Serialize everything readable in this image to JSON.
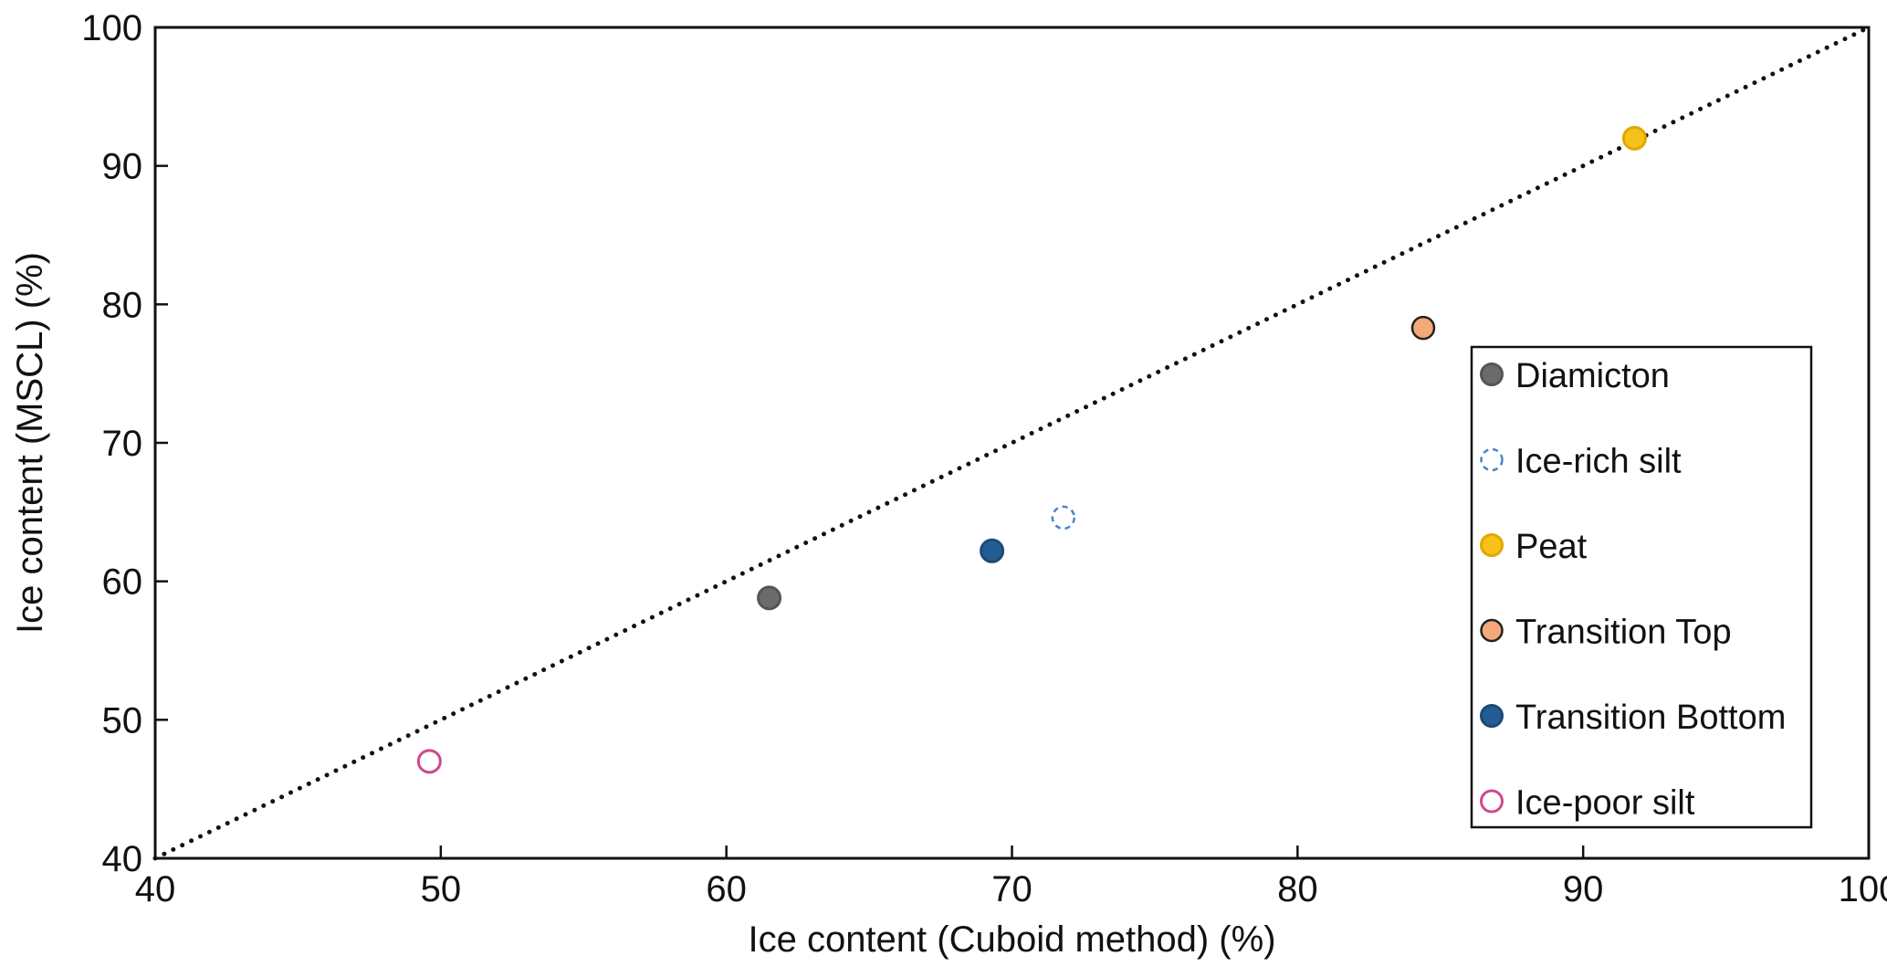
{
  "chart_data": {
    "type": "scatter",
    "title": "",
    "xlabel": "Ice content (Cuboid method) (%)",
    "ylabel": "Ice content (MSCL) (%)",
    "xlim": [
      40,
      100
    ],
    "ylim": [
      40,
      100
    ],
    "xticks": [
      "40",
      "50",
      "60",
      "70",
      "80",
      "90",
      "100"
    ],
    "yticks": [
      "40",
      "50",
      "60",
      "70",
      "80",
      "90",
      "100"
    ],
    "grid": false,
    "legend_position": "bottom-right",
    "reference_line": {
      "style": "dotted",
      "description": "1:1 line",
      "from": [
        40,
        40
      ],
      "to": [
        100,
        100
      ]
    },
    "series": [
      {
        "name": "Diamicton",
        "x": 61.5,
        "y": 58.8,
        "fill": "#6b6b6b",
        "stroke": "#555555",
        "marker": "filled"
      },
      {
        "name": "Ice-rich silt",
        "x": 71.8,
        "y": 64.6,
        "fill": "#ffffff",
        "stroke": "#4a86c8",
        "marker": "open-dashed"
      },
      {
        "name": "Peat",
        "x": 91.8,
        "y": 92.0,
        "fill": "#f5c11a",
        "stroke": "#e0a800",
        "marker": "filled"
      },
      {
        "name": "Transition Top",
        "x": 84.4,
        "y": 78.3,
        "fill": "#f3aa78",
        "stroke": "#222222",
        "marker": "filled-outlined"
      },
      {
        "name": "Transition Bottom",
        "x": 69.3,
        "y": 62.2,
        "fill": "#245d94",
        "stroke": "#1c4a78",
        "marker": "filled"
      },
      {
        "name": "Ice-poor silt",
        "x": 49.6,
        "y": 47.0,
        "fill": "#ffffff",
        "stroke": "#d0478f",
        "marker": "open"
      }
    ]
  }
}
